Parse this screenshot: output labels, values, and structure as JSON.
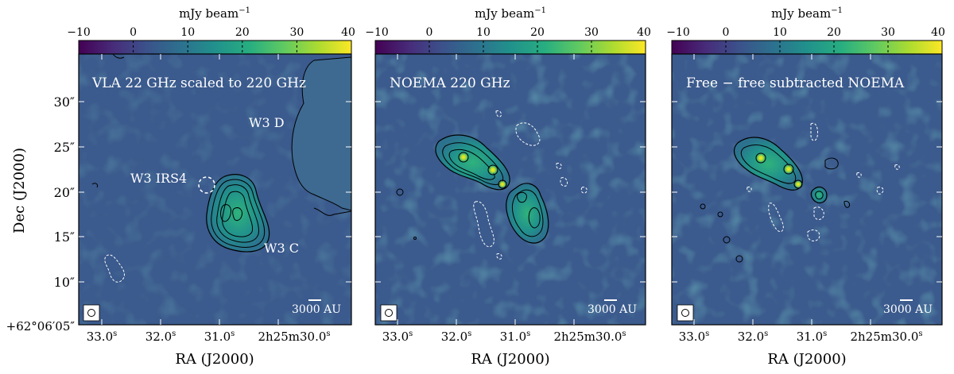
{
  "colorbar": {
    "label": "mJy beam",
    "label_exp": "−1",
    "ticks": [
      "−10",
      "0",
      "10",
      "20",
      "30",
      "40"
    ],
    "range": [
      -10,
      40
    ],
    "colormap": "viridis"
  },
  "axes": {
    "ylabel": "Dec (J2000)",
    "xlabel": "RA (J2000)",
    "y_ticks": [
      "30″",
      "25″",
      "20″",
      "15″",
      "10″"
    ],
    "y_origin": "+62°06′05″",
    "x_ticks": [
      "33.0",
      "32.0",
      "31.0",
      "2h25m30.0"
    ]
  },
  "panels": [
    {
      "title": "VLA 22 GHz scaled to 220 GHz",
      "labels": [
        "W3 D",
        "W3 IRS4",
        "W3 C"
      ],
      "scalebar": "3000 AU"
    },
    {
      "title": "NOEMA 220 GHz",
      "labels": [],
      "scalebar": "3000 AU"
    },
    {
      "title": "Free − free subtracted NOEMA",
      "labels": [],
      "scalebar": "3000 AU"
    }
  ]
}
